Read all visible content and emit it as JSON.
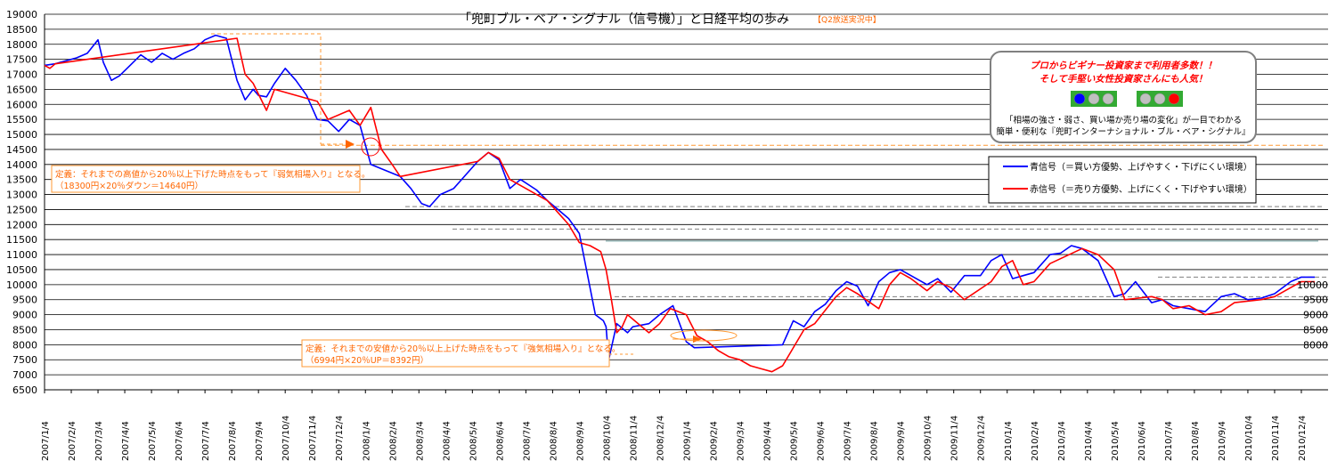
{
  "chart_data": {
    "type": "line",
    "title": "「兜町ブル・ベア・シグナル（信号機）」と日経平均の歩み",
    "tag": "【Q2放送実況中】",
    "xlabel": "",
    "ylabel": "",
    "ylim": [
      6500,
      19000
    ],
    "yticks": [
      6500,
      7000,
      7500,
      8000,
      8500,
      9000,
      9500,
      10000,
      10500,
      11000,
      11500,
      12000,
      12500,
      13000,
      13500,
      14000,
      14500,
      15000,
      15500,
      16000,
      16500,
      17000,
      17500,
      18000,
      18500,
      19000
    ],
    "ytick_labels": [
      "6500",
      "7000",
      "7500",
      "8000",
      "8500",
      "9000",
      "9500",
      "10000",
      "10500",
      "11000",
      "11500",
      "12000",
      "12500",
      "13000",
      "13500",
      "14000",
      "14500",
      "15000",
      "15500",
      "16000",
      "16500",
      "17000",
      "17500",
      "18000",
      "18500",
      "19000"
    ],
    "grid": true,
    "x_categories": [
      "2007/1/4",
      "2007/2/4",
      "2007/3/4",
      "2007/4/4",
      "2007/5/4",
      "2007/6/4",
      "2007/7/4",
      "2007/8/4",
      "2007/9/4",
      "2007/10/4",
      "2007/11/4",
      "2007/12/4",
      "2008/1/4",
      "2008/2/4",
      "2008/3/4",
      "2008/4/4",
      "2008/5/4",
      "2008/6/4",
      "2008/7/4",
      "2008/8/4",
      "2008/9/4",
      "2008/10/4",
      "2008/11/4",
      "2008/12/4",
      "2009/1/4",
      "2009/2/4",
      "2009/3/4",
      "2009/4/4",
      "2009/5/4",
      "2009/6/4",
      "2009/7/4",
      "2009/8/4",
      "2009/9/4",
      "2009/10/4",
      "2009/11/4",
      "2009/12/4",
      "2010/1/4",
      "2010/2/4",
      "2010/3/4",
      "2010/4/4",
      "2010/5/4",
      "2010/6/4",
      "2010/7/4",
      "2010/8/4",
      "2010/9/4",
      "2010/10/4",
      "2010/11/4",
      "2010/12/4"
    ],
    "series": [
      {
        "name": "青信号（＝買い方優勢、上げやすく・下げにくい環境）",
        "color": "#0000ff",
        "x_month": [
          0,
          0.4,
          0.8,
          1.2,
          1.6,
          2.0,
          2.2,
          2.5,
          2.8,
          3.2,
          3.6,
          4.0,
          4.4,
          4.8,
          5.2,
          5.6,
          6.0,
          6.4,
          6.8,
          7.2,
          7.5,
          7.8,
          8.0,
          8.3,
          8.6,
          9.0,
          9.4,
          9.8,
          10.2,
          10.6,
          11.0,
          11.4,
          11.8,
          12.2,
          13.3,
          13.7,
          14.1,
          14.4,
          14.8,
          15.3,
          15.8,
          16.2,
          16.6,
          17.0,
          17.4,
          17.8,
          18.4,
          18.8,
          19.2,
          19.6,
          20.0,
          20.6,
          20.9,
          21.0,
          21.1,
          21.4,
          21.8,
          22.0,
          22.6,
          23.0,
          23.5,
          24.0,
          24.3,
          27.6,
          28.0,
          28.4,
          28.8,
          29.2,
          29.6,
          30.0,
          30.4,
          30.8,
          31.2,
          31.6,
          32.0,
          32.4,
          33.0,
          33.4,
          33.9,
          34.4,
          35.0,
          35.4,
          35.8,
          36.2,
          36.6,
          37.0,
          37.6,
          38.0,
          38.4,
          38.8,
          39.4,
          40.0,
          40.4,
          40.8,
          41.4,
          41.8,
          42.2,
          42.8,
          43.4,
          44.0,
          44.5,
          45.0,
          45.5,
          46.0,
          46.6,
          47.0,
          47.5
        ],
        "y": [
          17300,
          17350,
          17450,
          17550,
          17700,
          18150,
          17400,
          16800,
          16950,
          17300,
          17650,
          17400,
          17700,
          17500,
          17700,
          17850,
          18150,
          18300,
          18200,
          16800,
          16150,
          16500,
          16300,
          16250,
          16700,
          17200,
          16800,
          16300,
          15500,
          15450,
          15100,
          15500,
          15300,
          14000,
          13600,
          13200,
          12700,
          12600,
          13000,
          13200,
          13700,
          14100,
          14400,
          14150,
          13200,
          13500,
          13150,
          12800,
          12500,
          12200,
          11700,
          9000,
          8800,
          8600,
          7500,
          8700,
          8400,
          8600,
          8700,
          9000,
          9300,
          8100,
          7900,
          8000,
          8800,
          8600,
          9100,
          9350,
          9800,
          10100,
          9950,
          9300,
          10100,
          10400,
          10500,
          10300,
          10000,
          10200,
          9750,
          10300,
          10300,
          10800,
          11000,
          10200,
          10300,
          10400,
          11000,
          11050,
          11300,
          11200,
          10800,
          9600,
          9700,
          10100,
          9400,
          9500,
          9300,
          9200,
          9100,
          9600,
          9700,
          9500,
          9550,
          9700,
          10100,
          10250,
          10250
        ]
      },
      {
        "name": "赤信号（＝売り方優勢、上げにくく・下げやすい環境）",
        "color": "#ff0000",
        "x_month": [
          0,
          0.2,
          0.4,
          7.2,
          7.5,
          7.8,
          8.3,
          8.6,
          10.2,
          10.6,
          11.4,
          11.8,
          12.2,
          12.6,
          13.0,
          13.3,
          16.2,
          16.6,
          17.0,
          17.4,
          17.8,
          18.4,
          18.8,
          19.2,
          19.6,
          20.0,
          20.4,
          20.8,
          21.0,
          21.2,
          21.4,
          21.6,
          21.8,
          22.6,
          23.0,
          23.4,
          24.0,
          24.4,
          24.8,
          25.2,
          25.6,
          26.0,
          26.4,
          26.8,
          27.2,
          27.6,
          28.4,
          28.8,
          29.6,
          30.0,
          30.4,
          31.2,
          31.6,
          32.0,
          32.4,
          33.0,
          33.4,
          33.9,
          34.4,
          35.4,
          35.8,
          36.2,
          36.6,
          37.0,
          37.6,
          38.8,
          39.4,
          40.0,
          40.4,
          41.4,
          41.8,
          42.2,
          42.8,
          43.4,
          44.0,
          44.5,
          45.5,
          46.0,
          46.6,
          47.0,
          47.5
        ],
        "y": [
          17300,
          17200,
          17350,
          18200,
          17000,
          16700,
          15800,
          16500,
          16100,
          15500,
          15800,
          15300,
          15900,
          14500,
          14000,
          13600,
          14100,
          14400,
          14200,
          13500,
          13300,
          13000,
          12800,
          12400,
          12000,
          11400,
          11300,
          11100,
          10500,
          9500,
          8400,
          8600,
          9000,
          8400,
          8700,
          9200,
          9000,
          8300,
          8100,
          7800,
          7600,
          7500,
          7300,
          7200,
          7100,
          7300,
          8500,
          8700,
          9600,
          9900,
          9700,
          9200,
          10000,
          10400,
          10200,
          9800,
          10100,
          9900,
          9500,
          10100,
          10600,
          10800,
          10000,
          10100,
          10700,
          11200,
          11000,
          10500,
          9500,
          9600,
          9500,
          9200,
          9300,
          9000,
          9100,
          9400,
          9500,
          9600,
          9900,
          10100,
          10100
        ]
      }
    ],
    "annotations": [
      {
        "kind": "bear_definition",
        "lines": [
          "定義：それまでの高値から20％以上下げた時点をもって『弱気相場入り』となる。",
          "（18300円×20％ダウン＝14640円）"
        ],
        "level": 14640,
        "peak": 18300
      },
      {
        "kind": "bull_definition",
        "lines": [
          "定義：それまでの安値から20％以上上げた時点をもって『強気相場入り』となる。",
          "（6994円×20％UP＝8392円）"
        ],
        "level": 8392,
        "trough": 6994
      }
    ],
    "right_labels": [
      "10000",
      "9500",
      "9000",
      "8500",
      "8000"
    ],
    "legend": {
      "placement": "top-right",
      "items": [
        {
          "label": "青信号（＝買い方優勢、上げやすく・下げにくい環境）",
          "color": "#0000ff"
        },
        {
          "label": "赤信号（＝売り方優勢、上げにくく・下げやすい環境）",
          "color": "#ff0000"
        }
      ]
    },
    "ad_box": {
      "line1": "プロからビギナー投資家まで利用者多数！！",
      "line2": "そして手堅い女性投資家さんにも人気！",
      "line3": "「相場の強さ・弱さ、買い場か売り場の変化」が一目でわかる",
      "line4": "簡単・便利な『兜町インターナショナル・ブル・ベア・シグナル』",
      "signal_left": [
        "#0000ff",
        "#c0c0c0",
        "#c0c0c0"
      ],
      "signal_right": [
        "#c0c0c0",
        "#c0c0c0",
        "#ff0000"
      ]
    },
    "ref_lines": [
      14640,
      12600,
      11850,
      11450,
      10250,
      9600
    ]
  }
}
